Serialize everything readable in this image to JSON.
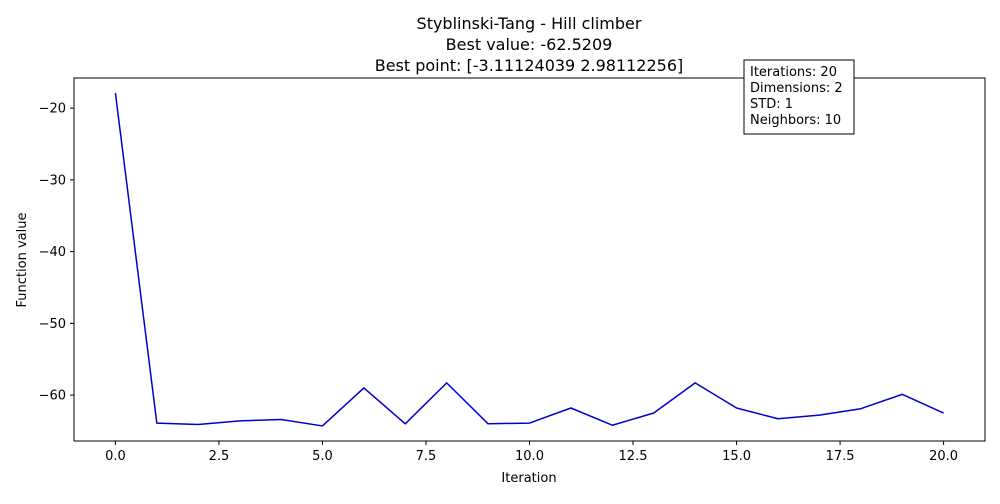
{
  "chart_data": {
    "type": "line",
    "title_lines": [
      "Styblinski-Tang - Hill climber",
      "Best value: -62.5209",
      "Best point: [-3.11124039  2.98112256]"
    ],
    "xlabel": "Iteration",
    "ylabel": "Function value",
    "xlim": [
      -1,
      21
    ],
    "ylim": [
      -66.4,
      -15.8
    ],
    "x_ticks": [
      0.0,
      2.5,
      5.0,
      7.5,
      10.0,
      12.5,
      15.0,
      17.5,
      20.0
    ],
    "x_tick_labels": [
      "0.0",
      "2.5",
      "5.0",
      "7.5",
      "10.0",
      "12.5",
      "15.0",
      "17.5",
      "20.0"
    ],
    "y_ticks": [
      -20,
      -30,
      -40,
      -50,
      -60
    ],
    "y_tick_labels": [
      "−20",
      "−30",
      "−40",
      "−50",
      "−60"
    ],
    "grid": false,
    "series": [
      {
        "color": "#0000cc",
        "x": [
          0,
          1,
          2,
          3,
          4,
          5,
          6,
          7,
          8,
          9,
          10,
          11,
          12,
          13,
          14,
          15,
          16,
          17,
          18,
          19,
          20
        ],
        "values": [
          -17.9,
          -63.9,
          -64.1,
          -63.6,
          -63.4,
          -64.3,
          -59.0,
          -64.0,
          -58.3,
          -64.0,
          -63.9,
          -61.8,
          -64.2,
          -62.5,
          -58.3,
          -61.8,
          -63.3,
          -62.8,
          -61.9,
          -59.9,
          -62.5
        ]
      }
    ],
    "info_box": {
      "lines": [
        "Iterations: 20",
        "Dimensions: 2",
        "STD: 1",
        "Neighbors: 10"
      ],
      "placement": "top-right"
    }
  }
}
